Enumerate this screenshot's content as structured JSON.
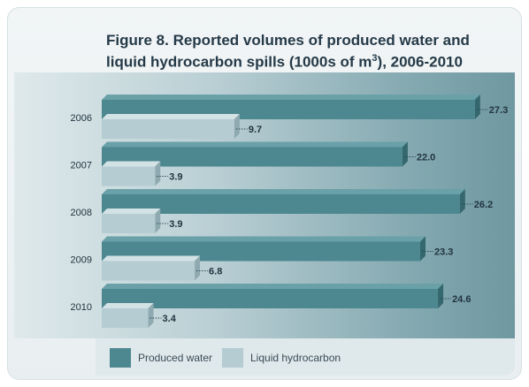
{
  "title_line1": "Figure 8. Reported volumes of produced water and",
  "title_line2_prefix": "liquid hydrocarbon spills (1000s of m",
  "title_line2_sup": "3",
  "title_line2_suffix": "), 2006-2010",
  "colors": {
    "produced_water": "#4d8790",
    "liquid_hydrocarbon": "#b4ccd2"
  },
  "legend": {
    "produced_water_label": "Produced water",
    "liquid_hydrocarbon_label": "Liquid hydrocarbon"
  },
  "chart_data": {
    "type": "bar",
    "orientation": "horizontal",
    "title": "Figure 8. Reported volumes of produced water and liquid hydrocarbon spills (1000s of m3), 2006-2010",
    "categories": [
      "2006",
      "2007",
      "2008",
      "2009",
      "2010"
    ],
    "series": [
      {
        "name": "Produced water",
        "values": [
          27.3,
          22.0,
          26.2,
          23.3,
          24.6
        ],
        "labels": [
          "27.3",
          "22.0",
          "26.2",
          "23.3",
          "24.6"
        ]
      },
      {
        "name": "Liquid hydrocarbon",
        "values": [
          9.7,
          3.9,
          3.9,
          6.8,
          3.4
        ],
        "labels": [
          "9.7",
          "3.9",
          "3.9",
          "6.8",
          "3.4"
        ]
      }
    ],
    "xlabel": "",
    "ylabel": "",
    "legend_position": "bottom",
    "grid": false
  }
}
